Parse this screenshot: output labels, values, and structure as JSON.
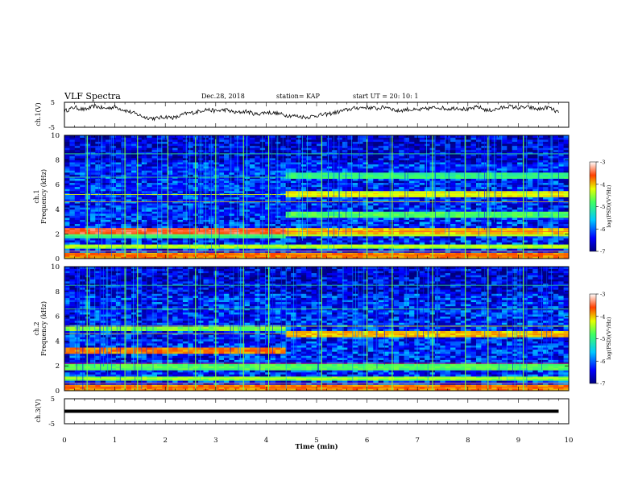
{
  "header": {
    "title": "VLF Spectra",
    "date": "Dec.28, 2018",
    "station": "station= KAP",
    "start_ut": "start  UT =   20: 10: 1"
  },
  "chart_data": [
    {
      "type": "line",
      "name": "panel-ch1-waveform",
      "ylabel": "ch.1(V)",
      "ylim": [
        -5,
        5
      ],
      "yticks": [
        "5",
        "-5"
      ],
      "xlim": [
        0,
        10
      ],
      "series": [
        {
          "x": [
            0,
            0.2,
            0.4,
            0.6,
            0.8,
            1.0,
            1.2,
            1.4,
            1.6,
            1.8,
            2.0,
            2.2,
            2.4,
            2.6,
            2.8,
            3.0,
            3.2,
            3.4,
            3.6,
            3.8,
            4.0,
            4.2,
            4.4,
            4.6,
            4.8,
            5.0,
            5.2,
            5.4,
            5.6,
            5.8,
            6.0,
            6.2,
            6.4,
            6.6,
            6.8,
            7.0,
            7.2,
            7.4,
            7.6,
            7.8,
            8.0,
            8.2,
            8.4,
            8.6,
            8.8,
            9.0,
            9.2,
            9.4,
            9.6,
            9.8
          ],
          "values": [
            1.5,
            3.0,
            2.0,
            3.5,
            2.5,
            3.2,
            1.8,
            0.5,
            -1.0,
            -1.5,
            -0.8,
            -1.2,
            0.5,
            1.0,
            2.2,
            1.5,
            2.0,
            0.8,
            1.4,
            0.2,
            1.0,
            0.6,
            -0.2,
            -0.5,
            -1.0,
            -0.3,
            0.2,
            1.0,
            2.0,
            2.8,
            3.0,
            2.5,
            3.2,
            1.5,
            2.2,
            1.8,
            2.5,
            3.0,
            2.4,
            2.8,
            2.0,
            3.2,
            1.6,
            2.4,
            3.4,
            2.8,
            3.0,
            2.2,
            3.0,
            0.8
          ]
        }
      ]
    },
    {
      "type": "heatmap",
      "name": "panel-ch1-spectrogram",
      "ylabel": "ch.1\nFrequency (kHz)",
      "ylim": [
        0,
        10
      ],
      "yticks": [
        "0",
        "2",
        "4",
        "6",
        "8",
        "10"
      ],
      "xlim": [
        0,
        9.8
      ],
      "colorbar": {
        "label": "log(PSD)(V²/Hz)",
        "range": [
          -7,
          -3
        ],
        "ticks": [
          "-3",
          "-4",
          "-5",
          "-6",
          "-7"
        ]
      },
      "regime_change_time_min": 4.3,
      "bands_before": [
        {
          "freq": 0.3,
          "level": -3.8
        },
        {
          "freq": 1.0,
          "level": -4.5
        },
        {
          "freq": 1.9,
          "level": -5.0
        },
        {
          "freq": 2.2,
          "level": -3.5
        },
        {
          "freq": 3.2,
          "level": -6.8
        },
        {
          "freq": 3.8,
          "level": -6.5
        },
        {
          "freq": 4.8,
          "level": -6.6
        },
        {
          "freq": 5.8,
          "level": -6.4
        },
        {
          "freq": 7.3,
          "level": -6.5
        }
      ],
      "bands_after": [
        {
          "freq": 0.3,
          "level": -3.8
        },
        {
          "freq": 1.0,
          "level": -4.5
        },
        {
          "freq": 2.0,
          "level": -4.2
        },
        {
          "freq": 2.3,
          "level": -4.0
        },
        {
          "freq": 3.0,
          "level": -6.8
        },
        {
          "freq": 3.6,
          "level": -4.8
        },
        {
          "freq": 5.2,
          "level": -4.2
        },
        {
          "freq": 6.8,
          "level": -5.0
        },
        {
          "freq": 7.4,
          "level": -6.5
        }
      ],
      "strong_impulses_min": [
        0.45,
        1.2,
        1.45,
        2.05,
        2.6,
        3.0,
        3.55,
        4.05,
        5.1,
        6.0,
        6.5,
        7.3,
        7.95,
        8.4,
        9.1
      ]
    },
    {
      "type": "heatmap",
      "name": "panel-ch2-spectrogram",
      "ylabel": "ch.2\nFrequency (kHz)",
      "ylim": [
        0,
        10
      ],
      "yticks": [
        "0",
        "2",
        "4",
        "6",
        "8",
        "10"
      ],
      "xlim": [
        0,
        9.8
      ],
      "colorbar": {
        "label": "log(PSD)(V²/Hz)",
        "range": [
          -7,
          -3
        ],
        "ticks": [
          "-3",
          "-4",
          "-5",
          "-6",
          "-7"
        ]
      },
      "regime_change_time_min": 4.3,
      "bands_before": [
        {
          "freq": 0.3,
          "level": -3.8
        },
        {
          "freq": 1.0,
          "level": -4.6
        },
        {
          "freq": 1.9,
          "level": -4.8
        },
        {
          "freq": 3.2,
          "level": -3.8
        },
        {
          "freq": 3.9,
          "level": -6.8
        },
        {
          "freq": 5.0,
          "level": -4.6
        },
        {
          "freq": 6.9,
          "level": -6.8
        }
      ],
      "bands_after": [
        {
          "freq": 0.3,
          "level": -3.8
        },
        {
          "freq": 1.0,
          "level": -4.6
        },
        {
          "freq": 1.9,
          "level": -4.8
        },
        {
          "freq": 3.0,
          "level": -6.8
        },
        {
          "freq": 3.8,
          "level": -6.8
        },
        {
          "freq": 4.6,
          "level": -4.0
        },
        {
          "freq": 6.9,
          "level": -6.8
        }
      ],
      "strong_impulses_min": [
        0.45,
        1.2,
        1.45,
        2.05,
        2.6,
        3.0,
        3.55,
        4.05,
        5.1,
        6.0,
        6.5,
        7.3,
        7.95,
        8.4,
        9.1
      ]
    },
    {
      "type": "line",
      "name": "panel-ch3-waveform",
      "ylabel": "ch.3(V)",
      "ylim": [
        -5,
        5
      ],
      "yticks": [
        "5",
        "-5"
      ],
      "xlim": [
        0,
        10
      ],
      "series": [
        {
          "x": [
            0,
            9.8
          ],
          "values": [
            0,
            0
          ]
        }
      ],
      "xlabel": "Time (min)",
      "xticks": [
        "0",
        "1",
        "2",
        "3",
        "4",
        "5",
        "6",
        "7",
        "8",
        "9",
        "10"
      ]
    }
  ]
}
